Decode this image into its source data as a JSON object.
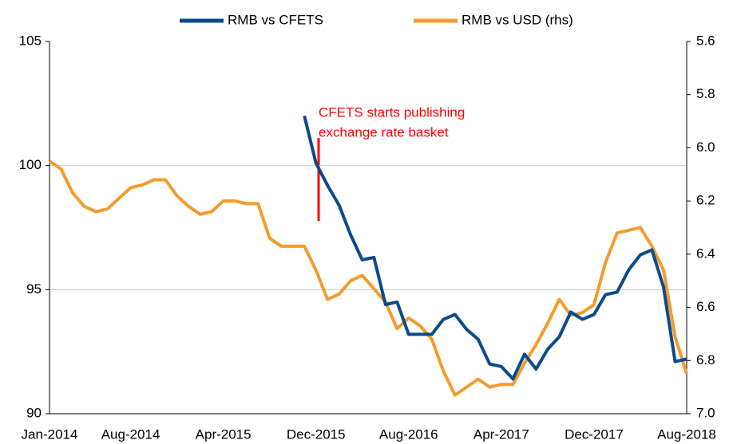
{
  "chart_data": {
    "type": "line",
    "categories": [
      "Jan-2014",
      null,
      null,
      null,
      null,
      null,
      null,
      "Aug-2014",
      null,
      null,
      null,
      null,
      null,
      null,
      null,
      "Apr-2015",
      null,
      null,
      null,
      null,
      null,
      null,
      null,
      "Dec-2015",
      null,
      null,
      null,
      null,
      null,
      null,
      null,
      "Aug-2016",
      null,
      null,
      null,
      null,
      null,
      null,
      null,
      "Apr-2017",
      null,
      null,
      null,
      null,
      null,
      null,
      null,
      "Dec-2017",
      null,
      null,
      null,
      null,
      null,
      null,
      null,
      "Aug-2018"
    ],
    "series": [
      {
        "name": "RMB vs CFETS",
        "color": "#0b4a8b",
        "axis": "y",
        "values": [
          null,
          null,
          null,
          null,
          null,
          null,
          null,
          null,
          null,
          null,
          null,
          null,
          null,
          null,
          null,
          null,
          null,
          null,
          null,
          null,
          null,
          null,
          102.0,
          100.1,
          99.2,
          98.4,
          97.2,
          96.2,
          96.3,
          94.4,
          94.5,
          93.2,
          93.2,
          93.2,
          93.8,
          94.0,
          93.4,
          93.0,
          92.0,
          91.9,
          91.4,
          92.4,
          91.8,
          92.6,
          93.1,
          94.1,
          93.8,
          94.0,
          94.8,
          94.9,
          95.8,
          96.4,
          96.6,
          95.1,
          92.1,
          92.2
        ]
      },
      {
        "name": "RMB vs USD (rhs)",
        "color": "#f39c2c",
        "axis": "y2",
        "values": [
          6.05,
          6.08,
          6.17,
          6.22,
          6.24,
          6.23,
          6.19,
          6.15,
          6.14,
          6.12,
          6.12,
          6.18,
          6.22,
          6.25,
          6.24,
          6.2,
          6.2,
          6.21,
          6.21,
          6.34,
          6.37,
          6.37,
          6.37,
          6.46,
          6.57,
          6.55,
          6.5,
          6.48,
          6.53,
          6.58,
          6.68,
          6.64,
          6.67,
          6.72,
          6.84,
          6.93,
          6.9,
          6.87,
          6.9,
          6.89,
          6.89,
          6.81,
          6.74,
          6.66,
          6.57,
          6.63,
          6.62,
          6.59,
          6.43,
          6.32,
          6.31,
          6.3,
          6.37,
          6.46,
          6.71,
          6.85
        ]
      }
    ],
    "ylim": [
      90,
      105
    ],
    "yticks": [
      90,
      95,
      100,
      105
    ],
    "y2lim": [
      7.0,
      5.6
    ],
    "y2ticks": [
      5.6,
      5.8,
      {
        "value": 6.0,
        "label": "6.0"
      },
      6.2,
      6.4,
      6.6,
      6.8,
      {
        "value": 7.0,
        "label": "7.0"
      }
    ],
    "grid": true,
    "legend": "top",
    "annotation": [
      "CFETS  starts publishing",
      "exchange rate basket"
    ],
    "annotation_color": "#ff0000"
  }
}
